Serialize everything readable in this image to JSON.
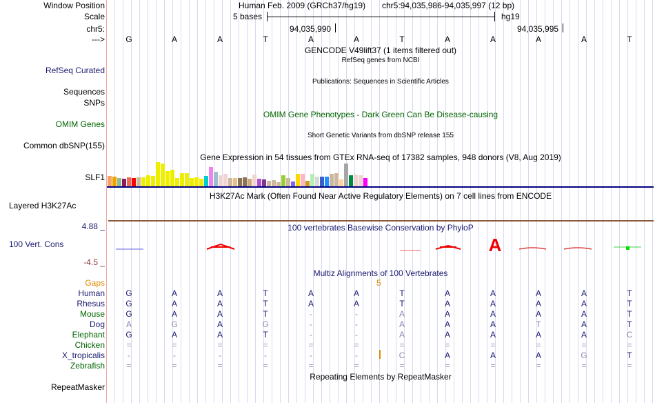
{
  "labels": {
    "window_position": "Window Position",
    "scale": "Scale",
    "chrom": "chr5:",
    "strand": "--->",
    "refseq_curated": "RefSeq Curated",
    "sequences": "Sequences",
    "snps": "SNPs",
    "omim_genes": "OMIM Genes",
    "common_dbsnp": "Common dbSNP(155)",
    "slf1": "SLF1",
    "layered_h3k27ac": "Layered H3K27Ac",
    "cons_max": "4.88 _",
    "cons_label": "100 Vert. Cons",
    "cons_min": "-4.5 _",
    "gaps": "Gaps",
    "repeatmasker": "RepeatMasker"
  },
  "header": {
    "assembly": "Human Feb. 2009 (GRCh37/hg19)",
    "position": "chr5:94,035,986-94,035,997 (12 bp)",
    "scale_text": "5 bases",
    "scale_db": "hg19",
    "coord1": "94,035,990",
    "coord2": "94,035,995"
  },
  "sequence": [
    "G",
    "A",
    "A",
    "T",
    "A",
    "A",
    "T",
    "A",
    "A",
    "A",
    "A",
    "T"
  ],
  "titles": {
    "gencode": "GENCODE V49lift37 (1 items filtered out)",
    "refseq": "RefSeq genes from NCBI",
    "publications": "Publications: Sequences in Scientific Articles",
    "omim_pheno": "OMIM Gene Phenotypes - Dark Green Can Be Disease-causing",
    "short_variants": "Short Genetic Variants from dbSNP release 155",
    "gtex": "Gene Expression in 54 tissues from GTEx RNA-seq of 17382 samples, 948 donors (V8, Aug 2019)",
    "h3k27ac": "H3K27Ac Mark (Often Found Near Active Regulatory Elements) on 7 cell lines from ENCODE",
    "phylop": "100 vertebrates Basewise Conservation by PhyloP",
    "multiz": "Multiz Alignments of 100 Vertebrates",
    "repeats": "Repeating Elements by RepeatMasker"
  },
  "gtex": {
    "relative_expression": [
      15,
      14,
      12,
      11,
      13,
      12,
      13,
      13,
      16,
      15,
      35,
      33,
      22,
      24,
      12,
      19,
      19,
      12,
      13,
      11,
      15,
      28,
      21,
      16,
      18,
      12,
      12,
      12,
      13,
      11,
      17,
      11,
      10,
      8,
      9,
      6,
      16,
      12,
      7,
      18,
      18,
      8,
      18,
      14,
      14,
      14,
      18,
      19,
      10,
      33,
      16,
      17,
      16,
      12
    ],
    "colors": [
      "#f4a460",
      "#f0a000",
      "#8fbc8f",
      "#8b1c62",
      "#ee6a50",
      "#ff0000",
      "#cdb79e",
      "#eeee00",
      "#eeee00",
      "#eeee00",
      "#eeee00",
      "#eeee00",
      "#eeee00",
      "#eeee00",
      "#eeee00",
      "#eeee00",
      "#eeee00",
      "#eeee00",
      "#eeee00",
      "#eeee00",
      "#00cdcd",
      "#ee82ee",
      "#9ac0cd",
      "#eed5d2",
      "#eed5d2",
      "#cdb79e",
      "#e8c08a",
      "#8b7355",
      "#8b7355",
      "#cdaa7d",
      "#eed5d2",
      "#b452cd",
      "#7a378b",
      "#cdb79e",
      "#cdb79e",
      "#cdb79e",
      "#9acd32",
      "#cdb79e",
      "#7b68ee",
      "#ffd700",
      "#ffb6c1",
      "#cd9b1d",
      "#b4eeb4",
      "#d9d9d9",
      "#3a5fcd",
      "#1e90ff",
      "#cdb79e",
      "#cdb79e",
      "#ffd39b",
      "#a6a6a6",
      "#008b45",
      "#eed5d2",
      "#eed5d2",
      "#ff00ff"
    ]
  },
  "multiz": {
    "gap_count": "5",
    "species": [
      {
        "name": "Human",
        "color": "#191970",
        "bases": "GAATAATAAAAT"
      },
      {
        "name": "Rhesus",
        "color": "#191970",
        "bases": "GAATAATAAAAT"
      },
      {
        "name": "Mouse",
        "color": "#006400",
        "bases": "GAAT--AAAAAT"
      },
      {
        "name": "Dog",
        "color": "#191970",
        "bases": "AGAG--AAATAT"
      },
      {
        "name": "Elephant",
        "color": "#006400",
        "bases": "GAAT--AAAAAC"
      },
      {
        "name": "Chicken",
        "color": "#006400",
        "bases": "============"
      },
      {
        "name": "X_tropicalis",
        "color": "#191970",
        "bases": "------CAAAGT"
      },
      {
        "name": "Zebrafish",
        "color": "#006400",
        "bases": "============"
      }
    ]
  }
}
